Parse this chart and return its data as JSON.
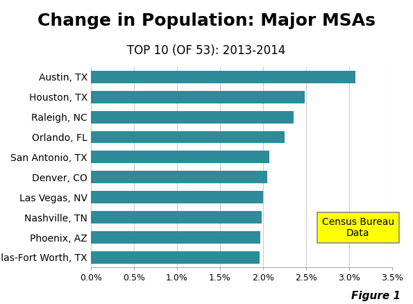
{
  "title": "Change in Population: Major MSAs",
  "subtitle": "TOP 10 (OF 53): 2013-2014",
  "categories": [
    "Dallas-Fort Worth, TX",
    "Phoenix, AZ",
    "Nashville, TN",
    "Las Vegas, NV",
    "Denver, CO",
    "San Antonio, TX",
    "Orlando, FL",
    "Raleigh, NC",
    "Houston, TX",
    "Austin, TX"
  ],
  "values": [
    0.0196,
    0.0197,
    0.0198,
    0.02,
    0.0205,
    0.0207,
    0.0225,
    0.0235,
    0.0248,
    0.0307
  ],
  "bar_color": "#2E8B9A",
  "background_color": "#ffffff",
  "xlim": [
    0,
    0.035
  ],
  "xticks": [
    0.0,
    0.005,
    0.01,
    0.015,
    0.02,
    0.025,
    0.03,
    0.035
  ],
  "annotation_text": "Census Bureau\nData",
  "annotation_bg": "#ffff00",
  "annotation_edge": "#888888",
  "figure1_text": "Figure 1",
  "title_fontsize": 18,
  "subtitle_fontsize": 12,
  "label_fontsize": 10,
  "tick_fontsize": 9,
  "figure1_fontsize": 11
}
